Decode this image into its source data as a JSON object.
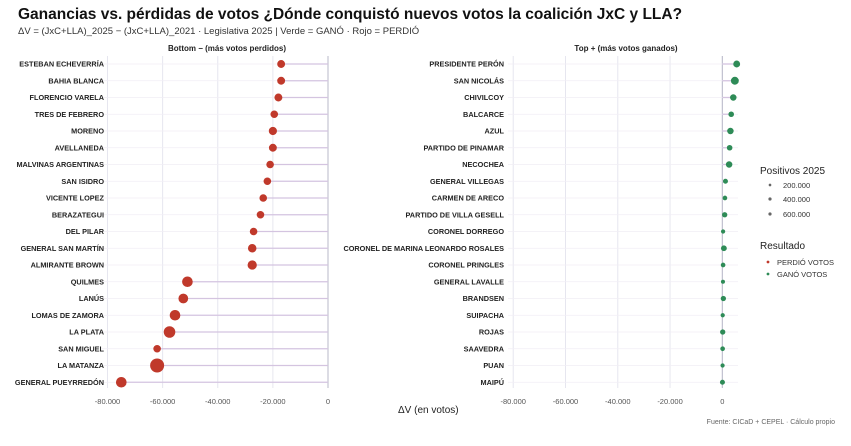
{
  "title": "Ganancias vs. pérdidas de votos ¿Dónde conquistó nuevos votos la coalición JxC y LLA?",
  "subtitle": "ΔV = (JxC+LLA)_2025 − (JxC+LLA)_2021 · Legislativa 2025 | Verde = GANÓ · Rojo = PERDIÓ",
  "source": "Fuente: CICaD + CEPEL · Cálculo propio",
  "legend": {
    "size_title": "Positivos 2025",
    "size_labels": [
      "200.000",
      "400.000",
      "600.000"
    ],
    "result_title": "Resultado",
    "result_labels": [
      "PERDIÓ VOTOS",
      "GANÓ VOTOS"
    ]
  },
  "colors": {
    "lost": "#c0392b",
    "won": "#2e8b57",
    "stem": "#d4c4e0",
    "grid": "#e6e6ef"
  },
  "chart_data": [
    {
      "type": "scatter",
      "title": "Bottom − (más votos perdidos)",
      "xlabel": "ΔV (en votos)",
      "xlim": [
        -82000,
        0
      ],
      "xticks": [
        -80000,
        -60000,
        -40000,
        -20000,
        0
      ],
      "xtick_labels": [
        "-80.000",
        "-60.000",
        "-40.000",
        "-20.000",
        "0"
      ],
      "categories": [
        "ESTEBAN ECHEVERRÍA",
        "BAHIA BLANCA",
        "FLORENCIO VARELA",
        "TRES DE FEBRERO",
        "MORENO",
        "AVELLANEDA",
        "MALVINAS ARGENTINAS",
        "SAN ISIDRO",
        "VICENTE LOPEZ",
        "BERAZATEGUI",
        "DEL PILAR",
        "GENERAL SAN MARTÍN",
        "ALMIRANTE BROWN",
        "QUILMES",
        "LANÚS",
        "LOMAS DE ZAMORA",
        "LA PLATA",
        "SAN MIGUEL",
        "LA MATANZA",
        "GENERAL PUEYRREDÓN"
      ],
      "values": [
        -17000,
        -17000,
        -18000,
        -19500,
        -20000,
        -20000,
        -21000,
        -22000,
        -23500,
        -24500,
        -27000,
        -27500,
        -27500,
        -51000,
        -52500,
        -55500,
        -57500,
        -62000,
        -62000,
        -75000
      ],
      "size_votes": [
        90000,
        90000,
        90000,
        80000,
        100000,
        90000,
        80000,
        80000,
        80000,
        80000,
        80000,
        110000,
        140000,
        200000,
        160000,
        200000,
        250000,
        80000,
        400000,
        200000
      ],
      "result": [
        "PERDIÓ VOTOS",
        "PERDIÓ VOTOS",
        "PERDIÓ VOTOS",
        "PERDIÓ VOTOS",
        "PERDIÓ VOTOS",
        "PERDIÓ VOTOS",
        "PERDIÓ VOTOS",
        "PERDIÓ VOTOS",
        "PERDIÓ VOTOS",
        "PERDIÓ VOTOS",
        "PERDIÓ VOTOS",
        "PERDIÓ VOTOS",
        "PERDIÓ VOTOS",
        "PERDIÓ VOTOS",
        "PERDIÓ VOTOS",
        "PERDIÓ VOTOS",
        "PERDIÓ VOTOS",
        "PERDIÓ VOTOS",
        "PERDIÓ VOTOS",
        "PERDIÓ VOTOS"
      ]
    },
    {
      "type": "scatter",
      "title": "Top + (más votos ganados)",
      "xlabel": "ΔV (en votos)",
      "xlim": [
        -82000,
        6000
      ],
      "xticks": [
        -80000,
        -60000,
        -40000,
        -20000,
        0
      ],
      "xtick_labels": [
        "-80.000",
        "-60.000",
        "-40.000",
        "-20.000",
        "0"
      ],
      "categories": [
        "PRESIDENTE PERÓN",
        "SAN NICOLÁS",
        "CHIVILCOY",
        "BALCARCE",
        "AZUL",
        "PARTIDO DE PINAMAR",
        "NECOCHEA",
        "GENERAL VILLEGAS",
        "CARMEN DE ARECO",
        "PARTIDO DE VILLA GESELL",
        "CORONEL DORREGO",
        "CORONEL DE MARINA LEONARDO ROSALES",
        "CORONEL PRINGLES",
        "GENERAL LAVALLE",
        "BRANDSEN",
        "SUIPACHA",
        "ROJAS",
        "SAAVEDRA",
        "PUAN",
        "MAIPÚ"
      ],
      "values": [
        5500,
        4800,
        4200,
        3400,
        3100,
        2800,
        2600,
        1200,
        1000,
        900,
        300,
        600,
        300,
        250,
        400,
        150,
        150,
        120,
        100,
        50
      ],
      "size_votes": [
        60000,
        90000,
        50000,
        30000,
        50000,
        30000,
        50000,
        20000,
        15000,
        25000,
        10000,
        35000,
        15000,
        8000,
        25000,
        10000,
        25000,
        15000,
        10000,
        20000
      ],
      "result": [
        "GANÓ VOTOS",
        "GANÓ VOTOS",
        "GANÓ VOTOS",
        "GANÓ VOTOS",
        "GANÓ VOTOS",
        "GANÓ VOTOS",
        "GANÓ VOTOS",
        "GANÓ VOTOS",
        "GANÓ VOTOS",
        "GANÓ VOTOS",
        "GANÓ VOTOS",
        "GANÓ VOTOS",
        "GANÓ VOTOS",
        "GANÓ VOTOS",
        "GANÓ VOTOS",
        "GANÓ VOTOS",
        "GANÓ VOTOS",
        "GANÓ VOTOS",
        "GANÓ VOTOS",
        "GANÓ VOTOS"
      ]
    }
  ]
}
